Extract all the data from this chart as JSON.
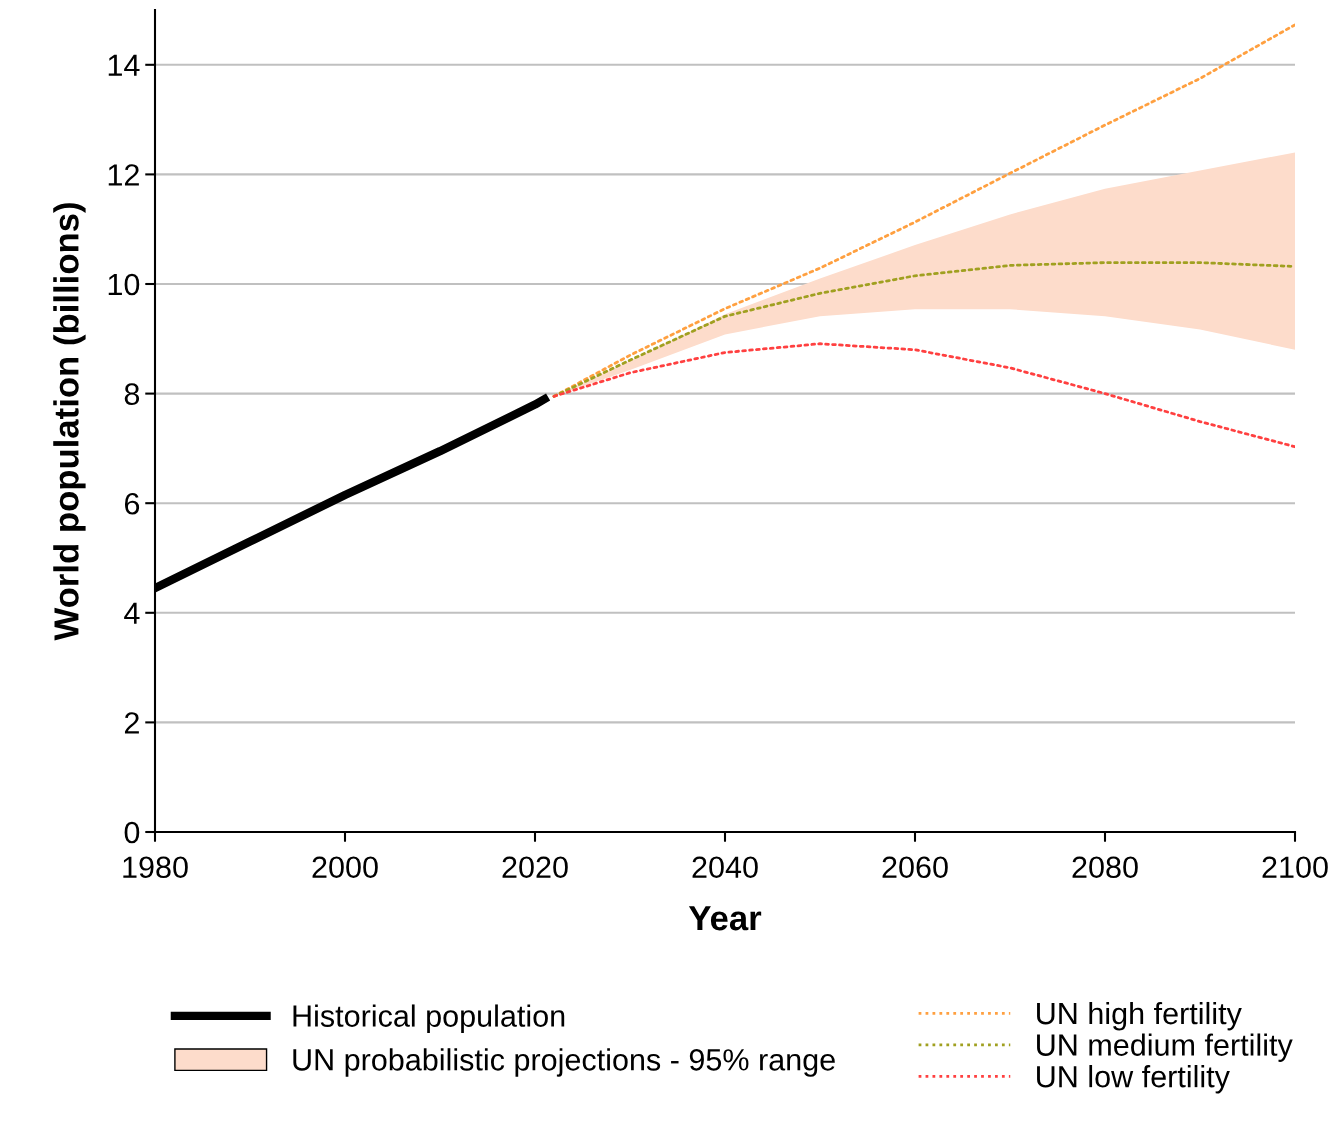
{
  "chart_data": {
    "type": "line",
    "xlabel": "Year",
    "ylabel": "World population (billions)",
    "xlim": [
      1980,
      2100
    ],
    "xticks": [
      1980,
      2000,
      2020,
      2040,
      2060,
      2080,
      2100
    ],
    "ylim": [
      0,
      15
    ],
    "yticks": [
      0,
      2,
      4,
      6,
      8,
      10,
      12,
      14
    ],
    "grid": "y",
    "legend": "bottom",
    "series": [
      {
        "name": "Historical population",
        "color": "#000000",
        "line_style": "solid",
        "x": [
          1980,
          1990,
          2000,
          2010,
          2020,
          2021
        ],
        "values": [
          4.45,
          5.3,
          6.15,
          6.95,
          7.8,
          7.9
        ]
      },
      {
        "name": "UN probabilistic projections - 95% range",
        "type": "area",
        "color": "#fddccb",
        "x": [
          2022,
          2030,
          2040,
          2050,
          2060,
          2070,
          2080,
          2090,
          2100
        ],
        "values": [
          null,
          null,
          null,
          null,
          null,
          null,
          null,
          null,
          null
        ],
        "lower": [
          7.95,
          8.43,
          9.08,
          9.41,
          9.54,
          9.54,
          9.41,
          9.17,
          8.8
        ],
        "upper": [
          7.95,
          8.6,
          9.45,
          10.1,
          10.71,
          11.27,
          11.74,
          12.07,
          12.4
        ]
      },
      {
        "name": "UN high fertility",
        "color": "#ffa040",
        "line_style": "dotted",
        "x": [
          2022,
          2030,
          2040,
          2050,
          2060,
          2070,
          2080,
          2090,
          2100
        ],
        "values": [
          7.95,
          8.7,
          9.55,
          10.29,
          11.13,
          12.02,
          12.9,
          13.75,
          14.73
        ]
      },
      {
        "name": "UN medium fertility",
        "color": "#a0a020",
        "line_style": "dotted",
        "x": [
          2022,
          2030,
          2040,
          2050,
          2060,
          2070,
          2080,
          2090,
          2100
        ],
        "values": [
          7.95,
          8.61,
          9.41,
          9.83,
          10.15,
          10.34,
          10.39,
          10.39,
          10.32
        ]
      },
      {
        "name": "UN low fertility",
        "color": "#ff4040",
        "line_style": "dotted",
        "x": [
          2022,
          2030,
          2040,
          2050,
          2060,
          2070,
          2080,
          2090,
          2100
        ],
        "values": [
          7.95,
          8.38,
          8.75,
          8.91,
          8.8,
          8.47,
          8.0,
          7.49,
          7.03
        ]
      }
    ]
  }
}
